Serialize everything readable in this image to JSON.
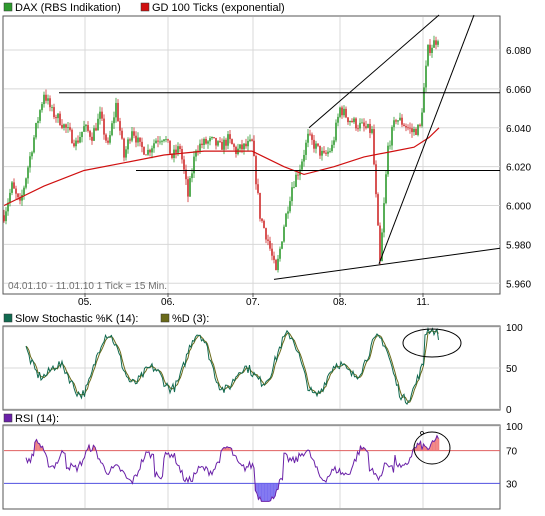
{
  "colors": {
    "candle_up": "#2e9a2e",
    "candle_down": "#cf2a2a",
    "ma_line": "#d01010",
    "stoch_k": "#116a50",
    "stoch_d": "#6a6a1a",
    "rsi_line": "#6a21a8",
    "rsi_over": "#f08080",
    "rsi_under": "#7a6ff0",
    "rsi_ref_high": "#e06060",
    "rsi_ref_low": "#5050e0",
    "grid": "#d8d8d8",
    "frame": "#555555"
  },
  "chart_data": [
    {
      "type": "candlestick",
      "title": "",
      "legend": [
        {
          "name": "DAX (RBS Indikation)",
          "icon": "candle-legend-icon",
          "color": "#2e9a2e"
        },
        {
          "name": "GD 100 Ticks (exponential)",
          "icon": "line-legend-icon",
          "color": "#d01010"
        }
      ],
      "date_range": "04.01.10 - 11.01.10   1 Tick = 15 Min.",
      "x_ticks": [
        "05.",
        "06.",
        "07.",
        "08.",
        "11."
      ],
      "y_ticks": [
        "5.960",
        "5.980",
        "6.000",
        "6.020",
        "6.040",
        "6.060",
        "6.080"
      ],
      "ylim": [
        5955,
        6097
      ],
      "close_path": [
        [
          0,
          5995
        ],
        [
          8,
          6010
        ],
        [
          16,
          6000
        ],
        [
          24,
          6020
        ],
        [
          32,
          6040
        ],
        [
          40,
          6058
        ],
        [
          48,
          6048
        ],
        [
          56,
          6044
        ],
        [
          64,
          6038
        ],
        [
          72,
          6032
        ],
        [
          80,
          6040
        ],
        [
          88,
          6036
        ],
        [
          96,
          6046
        ],
        [
          104,
          6030
        ],
        [
          112,
          6052
        ],
        [
          120,
          6025
        ],
        [
          128,
          6040
        ],
        [
          136,
          6030
        ],
        [
          144,
          6028
        ],
        [
          152,
          6034
        ],
        [
          160,
          6036
        ],
        [
          168,
          6025
        ],
        [
          176,
          6030
        ],
        [
          184,
          6005
        ],
        [
          192,
          6030
        ],
        [
          200,
          6032
        ],
        [
          208,
          6033
        ],
        [
          216,
          6030
        ],
        [
          224,
          6034
        ],
        [
          232,
          6028
        ],
        [
          240,
          6030
        ],
        [
          248,
          6032
        ],
        [
          256,
          5995
        ],
        [
          264,
          5982
        ],
        [
          272,
          5965
        ],
        [
          280,
          5990
        ],
        [
          288,
          6010
        ],
        [
          296,
          6020
        ],
        [
          304,
          6035
        ],
        [
          312,
          6030
        ],
        [
          320,
          6025
        ],
        [
          328,
          6030
        ],
        [
          336,
          6050
        ],
        [
          344,
          6045
        ],
        [
          352,
          6042
        ],
        [
          360,
          6040
        ],
        [
          368,
          6038
        ],
        [
          376,
          5970
        ],
        [
          384,
          6030
        ],
        [
          392,
          6045
        ],
        [
          400,
          6042
        ],
        [
          408,
          6038
        ],
        [
          416,
          6040
        ],
        [
          424,
          6080
        ],
        [
          432,
          6085
        ],
        [
          435,
          6088
        ]
      ],
      "ma_path": [
        [
          0,
          6000
        ],
        [
          40,
          6010
        ],
        [
          80,
          6018
        ],
        [
          120,
          6022
        ],
        [
          160,
          6026
        ],
        [
          200,
          6028
        ],
        [
          248,
          6028
        ],
        [
          280,
          6020
        ],
        [
          300,
          6016
        ],
        [
          330,
          6020
        ],
        [
          360,
          6025
        ],
        [
          390,
          6028
        ],
        [
          410,
          6030
        ],
        [
          425,
          6035
        ],
        [
          435,
          6040
        ]
      ],
      "trend_lines": [
        {
          "from": [
            55,
            6058
          ],
          "to": [
            500,
            6058
          ]
        },
        {
          "from": [
            132,
            6018
          ],
          "to": [
            500,
            6018
          ]
        },
        {
          "from": [
            270,
            5962
          ],
          "to": [
            500,
            5978
          ]
        },
        {
          "from": [
            305,
            6040
          ],
          "to": [
            435,
            6098
          ]
        },
        {
          "from": [
            375,
            5970
          ],
          "to": [
            470,
            6098
          ]
        }
      ]
    },
    {
      "type": "line",
      "title": "",
      "legend": [
        {
          "name": "Slow Stochastic %K (14):",
          "icon": "stoch-k-legend-icon",
          "color": "#116a50"
        },
        {
          "name": "%D (3):",
          "icon": "stoch-d-legend-icon",
          "color": "#6a6a1a"
        }
      ],
      "y_ticks": [
        "0",
        "50",
        "100"
      ],
      "ylim": [
        0,
        100
      ]
    },
    {
      "type": "line",
      "title": "",
      "legend": [
        {
          "name": "RSI (14):",
          "icon": "rsi-legend-icon",
          "color": "#6a21a8"
        }
      ],
      "y_ticks": [
        "30",
        "70",
        "100"
      ],
      "ref_lines": [
        70,
        30
      ],
      "ylim": [
        0,
        100
      ]
    }
  ]
}
